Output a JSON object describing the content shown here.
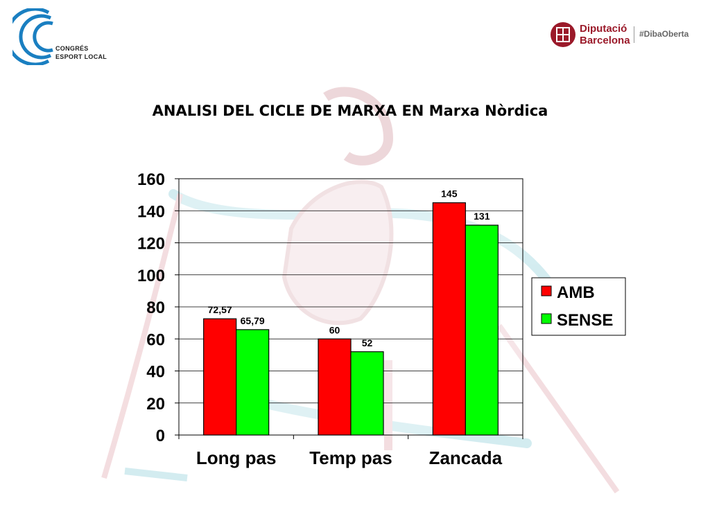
{
  "header": {
    "left_logo_text": [
      "CONGRÉS",
      "ESPORT LOCAL"
    ],
    "right_logo_name": [
      "Diputació",
      "Barcelona"
    ],
    "right_logo_hashtag": "#DibaOberta"
  },
  "colors": {
    "amb": "#ff0000",
    "sense": "#00ff00",
    "brand_blue": "#1a7fc1",
    "brand_red": "#9b1a2a"
  },
  "chart_data": {
    "type": "bar",
    "title": "ANALISI DEL CICLE DE MARXA EN Marxa Nòrdica",
    "categories": [
      "Long pas",
      "Temp pas",
      "Zancada"
    ],
    "series": [
      {
        "name": "AMB",
        "values": [
          72.57,
          60,
          145
        ],
        "labels": [
          "72,57",
          "60",
          "145"
        ]
      },
      {
        "name": "SENSE",
        "values": [
          65.79,
          52,
          131
        ],
        "labels": [
          "65,79",
          "52",
          "131"
        ]
      }
    ],
    "yticks": [
      0,
      20,
      40,
      60,
      80,
      100,
      120,
      140,
      160
    ],
    "ylim": [
      0,
      160
    ],
    "grid": true,
    "legend": "right"
  }
}
